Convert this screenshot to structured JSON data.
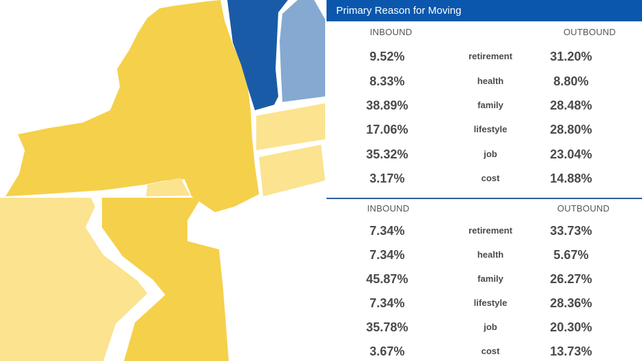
{
  "header": {
    "title": "Primary Reason for Moving"
  },
  "tables": [
    {
      "inbound_label": "INBOUND",
      "outbound_label": "OUTBOUND",
      "rows": [
        {
          "inbound": "9.52%",
          "reason": "retirement",
          "outbound": "31.20%"
        },
        {
          "inbound": "8.33%",
          "reason": "health",
          "outbound": "8.80%"
        },
        {
          "inbound": "38.89%",
          "reason": "family",
          "outbound": "28.48%"
        },
        {
          "inbound": "17.06%",
          "reason": "lifestyle",
          "outbound": "28.80%"
        },
        {
          "inbound": "35.32%",
          "reason": "job",
          "outbound": "23.04%"
        },
        {
          "inbound": "3.17%",
          "reason": "cost",
          "outbound": "14.88%"
        }
      ]
    },
    {
      "inbound_label": "INBOUND",
      "outbound_label": "OUTBOUND",
      "rows": [
        {
          "inbound": "7.34%",
          "reason": "retirement",
          "outbound": "33.73%"
        },
        {
          "inbound": "7.34%",
          "reason": "health",
          "outbound": "5.67%"
        },
        {
          "inbound": "45.87%",
          "reason": "family",
          "outbound": "26.27%"
        },
        {
          "inbound": "7.34%",
          "reason": "lifestyle",
          "outbound": "28.36%"
        },
        {
          "inbound": "35.78%",
          "reason": "job",
          "outbound": "20.30%"
        },
        {
          "inbound": "3.67%",
          "reason": "cost",
          "outbound": "13.73%"
        }
      ]
    }
  ],
  "colors": {
    "gold": "#f5d04a",
    "light_gold": "#fbe38f",
    "dark_blue": "#1a5ba8",
    "light_blue": "#85a9d1",
    "header_blue": "#0b57ad"
  }
}
